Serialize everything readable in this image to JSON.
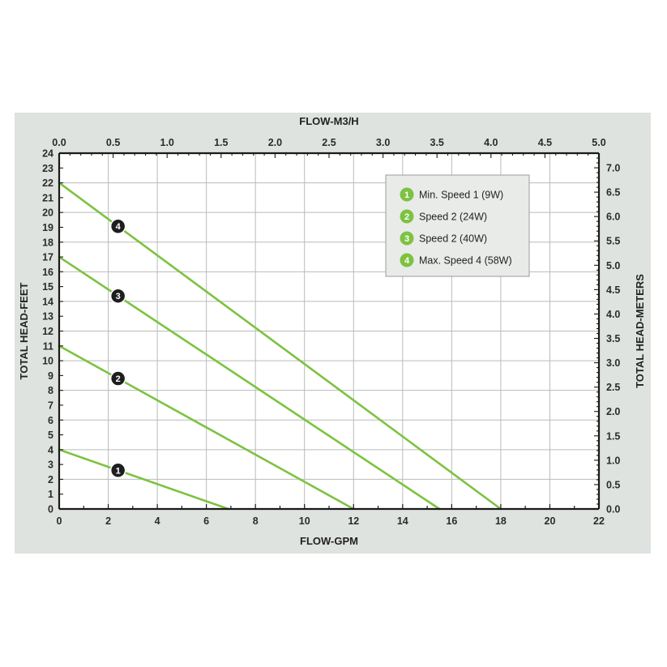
{
  "chart_data": {
    "type": "line",
    "top_axis": {
      "title": "FLOW-M3/H",
      "range": [
        0,
        5
      ],
      "ticks": [
        "0.0",
        "0.5",
        "1.0",
        "1.5",
        "2.0",
        "2.5",
        "3.0",
        "3.5",
        "4.0",
        "4.5",
        "5.0"
      ]
    },
    "bottom_axis": {
      "title": "FLOW-GPM",
      "range": [
        0,
        22
      ],
      "ticks": [
        "0",
        "2",
        "4",
        "6",
        "8",
        "10",
        "12",
        "14",
        "16",
        "18",
        "20",
        "22"
      ]
    },
    "left_axis": {
      "title": "TOTAL HEAD-FEET",
      "range": [
        0,
        24
      ],
      "ticks": [
        "0",
        "1",
        "2",
        "3",
        "4",
        "5",
        "6",
        "7",
        "8",
        "9",
        "10",
        "11",
        "12",
        "13",
        "14",
        "15",
        "16",
        "17",
        "18",
        "19",
        "20",
        "21",
        "22",
        "23",
        "24"
      ]
    },
    "right_axis": {
      "title": "TOTAL HEAD-METERS",
      "range": [
        0,
        7.3
      ],
      "ticks": [
        "0.0",
        "0.5",
        "1.0",
        "1.5",
        "2.0",
        "2.5",
        "3.0",
        "3.5",
        "4.0",
        "4.5",
        "5.0",
        "5.5",
        "6.0",
        "6.5",
        "7.0"
      ]
    },
    "grid": true,
    "legend_position": "top-right",
    "series": [
      {
        "id": "1",
        "name": "Min. Speed 1 (9W)",
        "color": "#7dc241",
        "x": [
          0,
          6.9
        ],
        "y": [
          4,
          0
        ],
        "badge_at_x": 2.4
      },
      {
        "id": "2",
        "name": "Speed 2 (24W)",
        "color": "#7dc241",
        "x": [
          0,
          12
        ],
        "y": [
          11,
          0
        ],
        "badge_at_x": 2.4
      },
      {
        "id": "3",
        "name": "Speed 2 (40W)",
        "color": "#7dc241",
        "x": [
          0,
          15.5
        ],
        "y": [
          17,
          0
        ],
        "badge_at_x": 2.4
      },
      {
        "id": "4",
        "name": "Max. Speed 4 (58W)",
        "color": "#7dc241",
        "x": [
          0,
          18
        ],
        "y": [
          22,
          0
        ],
        "badge_at_x": 2.4
      }
    ],
    "colors": {
      "panel_bg": "#dfe3df",
      "plot_bg": "#ffffff",
      "grid": "#b8bcb8",
      "axis": "#1a1a1a",
      "line": "#7dc241",
      "badge": "#1e1e1e",
      "legend_icon": "#7dc241"
    }
  }
}
